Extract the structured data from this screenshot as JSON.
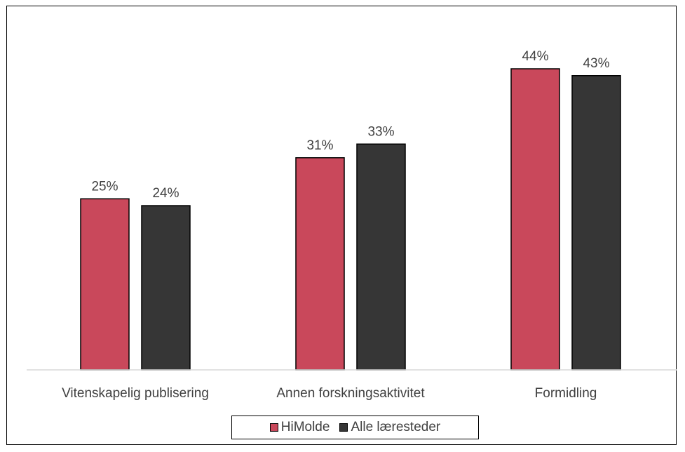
{
  "chart_data": {
    "type": "bar",
    "categories": [
      "Vitenskapelig publisering",
      "Annen forskningsaktivitet",
      "Formidling"
    ],
    "series": [
      {
        "name": "HiMolde",
        "values": [
          25,
          31,
          44
        ],
        "labels": [
          "25%",
          "31%",
          "44%"
        ],
        "color": "#c9485b"
      },
      {
        "name": "Alle læresteder",
        "values": [
          24,
          33,
          43
        ],
        "labels": [
          "24%",
          "33%",
          "43%"
        ],
        "color": "#363636"
      }
    ],
    "ylim": [
      0,
      50
    ],
    "unit": "%",
    "grid": false,
    "legend_position": "bottom",
    "baseline_color": "#d9d9d9"
  }
}
